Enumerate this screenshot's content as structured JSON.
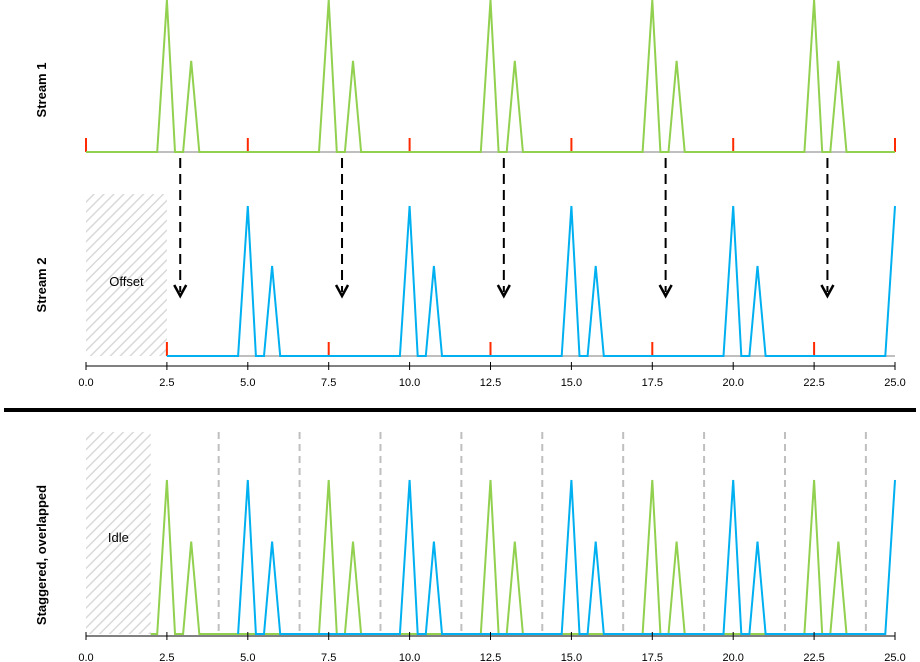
{
  "chart_data": {
    "type": "line",
    "colors": {
      "stream1": "#92d050",
      "stream2": "#00b0f0",
      "baseline": "#bfbfbf",
      "frame_tick": "#ff2a00",
      "arrow": "#000000",
      "slot_divider": "#bfbfbf",
      "hatch": "#d9d9d9",
      "separator": "#000000"
    },
    "x_ticks": [
      0.0,
      2.5,
      5.0,
      7.5,
      10.0,
      12.5,
      15.0,
      17.5,
      20.0,
      22.5,
      25.0
    ],
    "x_tick_labels": [
      "0.0",
      "2.5",
      "5.0",
      "7.5",
      "10.0",
      "12.5",
      "15.0",
      "17.5",
      "20.0",
      "22.5",
      "25.0"
    ],
    "xlim": [
      0,
      25
    ],
    "panels": [
      {
        "label": "Stream 1",
        "series": [
          {
            "color_key": "stream1",
            "x": [
              0,
              2.2,
              2.5,
              2.75,
              3.0,
              3.25,
              3.5,
              7.2,
              7.5,
              7.75,
              8.0,
              8.25,
              8.5,
              12.2,
              12.5,
              12.75,
              13.0,
              13.25,
              13.5,
              17.2,
              17.5,
              17.75,
              18.0,
              18.25,
              18.5,
              22.2,
              22.5,
              22.75,
              23.0,
              23.25,
              23.5,
              25.0
            ],
            "y": [
              0,
              0,
              1,
              0,
              0,
              0.6,
              0,
              0,
              1,
              0,
              0,
              0.6,
              0,
              0,
              1,
              0,
              0,
              0.6,
              0,
              0,
              1,
              0,
              0,
              0.6,
              0,
              0,
              1,
              0,
              0,
              0.6,
              0,
              0
            ]
          }
        ],
        "frame_ticks": [
          0,
          5,
          10,
          15,
          20,
          25
        ],
        "arrows_x": [
          2.85,
          7.85,
          12.85,
          17.85,
          22.85
        ]
      },
      {
        "label": "Stream 2",
        "annotation": "Offset",
        "region": [
          0,
          2.5
        ],
        "series": [
          {
            "color_key": "stream2",
            "x": [
              2.5,
              4.7,
              5.0,
              5.25,
              5.5,
              5.75,
              6.0,
              9.7,
              10.0,
              10.25,
              10.5,
              10.75,
              11.0,
              14.7,
              15.0,
              15.25,
              15.5,
              15.75,
              16.0,
              19.7,
              20.0,
              20.25,
              20.5,
              20.75,
              21.0,
              24.7,
              25.0
            ],
            "y": [
              0,
              0,
              1,
              0,
              0,
              0.6,
              0,
              0,
              1,
              0,
              0,
              0.6,
              0,
              0,
              1,
              0,
              0,
              0.6,
              0,
              0,
              1,
              0,
              0,
              0.6,
              0,
              0,
              1
            ]
          }
        ],
        "frame_ticks": [
          2.5,
          7.5,
          12.5,
          17.5,
          22.5
        ]
      },
      {
        "label": "Staggered, overlapped",
        "annotation": "Idle",
        "region": [
          0,
          2.0
        ],
        "slot_dividers": [
          4.1,
          6.6,
          9.1,
          11.6,
          14.1,
          16.6,
          19.1,
          21.6,
          24.1
        ],
        "series": [
          {
            "color_key": "stream1",
            "x": [
              2.0,
              2.2,
              2.5,
              2.75,
              3.0,
              3.25,
              3.5,
              7.2,
              7.5,
              7.75,
              8.0,
              8.25,
              8.5,
              12.2,
              12.5,
              12.75,
              13.0,
              13.25,
              13.5,
              17.2,
              17.5,
              17.75,
              18.0,
              18.25,
              18.5,
              22.2,
              22.5,
              22.75,
              23.0,
              23.25,
              23.5
            ],
            "y": [
              0,
              0,
              1,
              0,
              0,
              0.6,
              0,
              0,
              1,
              0,
              0,
              0.6,
              0,
              0,
              1,
              0,
              0,
              0.6,
              0,
              0,
              1,
              0,
              0,
              0.6,
              0,
              0,
              1,
              0,
              0,
              0.6,
              0
            ]
          },
          {
            "color_key": "stream2",
            "x": [
              4.7,
              5.0,
              5.25,
              5.5,
              5.75,
              6.0,
              9.7,
              10.0,
              10.25,
              10.5,
              10.75,
              11.0,
              14.7,
              15.0,
              15.25,
              15.5,
              15.75,
              16.0,
              19.7,
              20.0,
              20.25,
              20.5,
              20.75,
              21.0,
              24.7,
              25.0
            ],
            "y": [
              0,
              1,
              0,
              0,
              0.6,
              0,
              0,
              1,
              0,
              0,
              0.6,
              0,
              0,
              1,
              0,
              0,
              0.6,
              0,
              0,
              1,
              0,
              0,
              0.6,
              0,
              0,
              1
            ]
          }
        ]
      }
    ]
  }
}
